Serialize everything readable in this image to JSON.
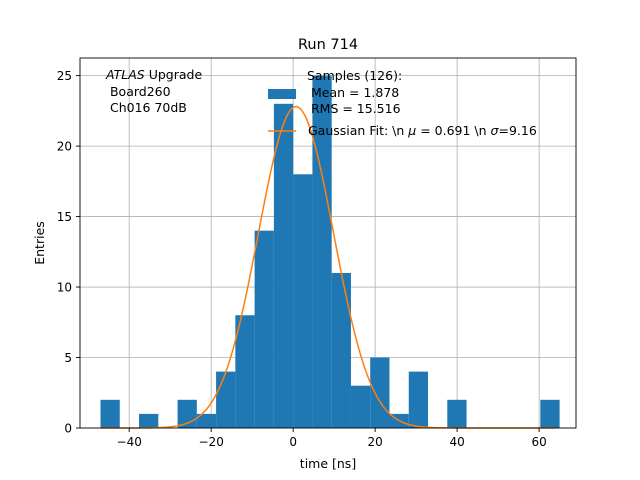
{
  "chart_data": {
    "type": "bar",
    "title": "Run 714",
    "xlabel": "time [ns]",
    "ylabel": "Entries",
    "xlim": [
      -52.0,
      69.0
    ],
    "ylim": [
      0,
      26.25
    ],
    "grid": true,
    "xticks": [
      -40,
      -20,
      0,
      20,
      40,
      60
    ],
    "yticks": [
      0,
      5,
      10,
      15,
      20,
      25
    ],
    "bin_width": 4.7,
    "bins": [
      {
        "x0": -47.0,
        "value": 2
      },
      {
        "x0": -37.6,
        "value": 1
      },
      {
        "x0": -28.2,
        "value": 2
      },
      {
        "x0": -23.5,
        "value": 1
      },
      {
        "x0": -18.8,
        "value": 4
      },
      {
        "x0": -14.1,
        "value": 8
      },
      {
        "x0": -9.4,
        "value": 14
      },
      {
        "x0": -4.7,
        "value": 23
      },
      {
        "x0": 0.0,
        "value": 18
      },
      {
        "x0": 4.7,
        "value": 25
      },
      {
        "x0": 9.4,
        "value": 11
      },
      {
        "x0": 14.1,
        "value": 3
      },
      {
        "x0": 18.8,
        "value": 5
      },
      {
        "x0": 23.5,
        "value": 1
      },
      {
        "x0": 28.2,
        "value": 4
      },
      {
        "x0": 37.6,
        "value": 2
      },
      {
        "x0": 60.3,
        "value": 2
      }
    ],
    "fit": {
      "type": "gaussian",
      "mu": 0.691,
      "sigma": 9.16,
      "amplitude": 22.8
    },
    "annotation_lines": [
      "ATLAS Upgrade",
      " Board260",
      " Ch016 70dB"
    ],
    "legend": {
      "position": "top-center",
      "entries": [
        {
          "lines": [
            "Samples (126):",
            " Mean = 1.878",
            " RMS = 15.516"
          ],
          "color": "#1f77b4"
        },
        {
          "lines": [
            "Gaussian Fit: \\n μ = 0.691 \\n σ=9.16"
          ],
          "color": "#ff7f0e"
        }
      ]
    },
    "colors": {
      "bars": "#1f77b4",
      "fit": "#ff7f0e",
      "grid": "#b0b0b0"
    }
  }
}
